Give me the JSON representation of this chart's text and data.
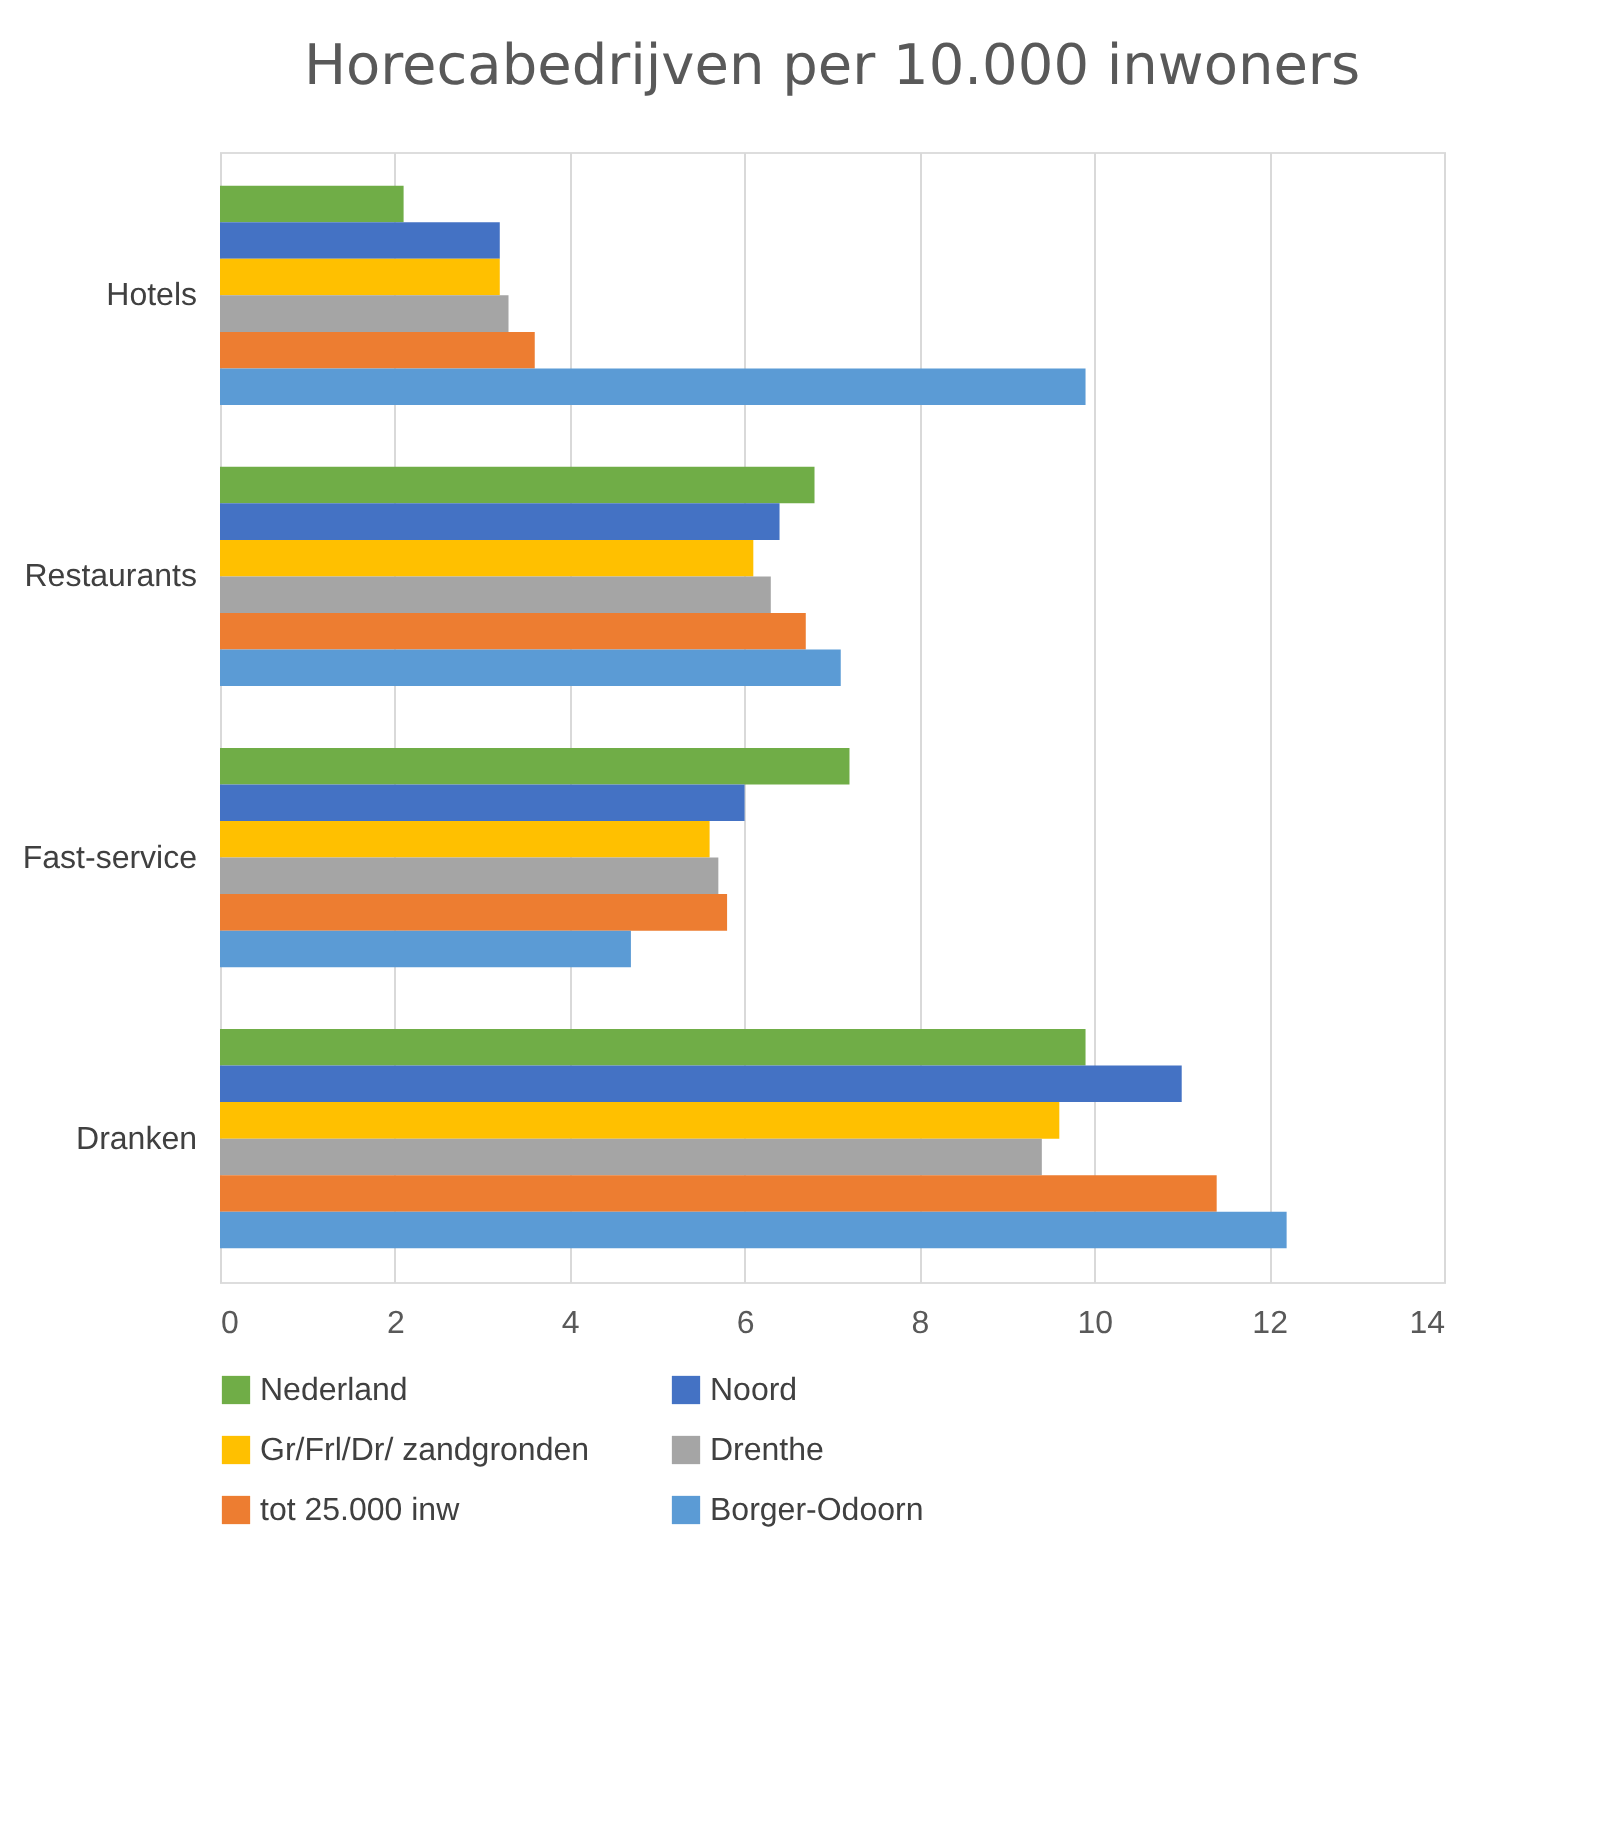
{
  "chart_data": {
    "type": "bar",
    "orientation": "horizontal",
    "title": "Horecabedrijven per 10.000 inwoners",
    "categories": [
      "Hotels",
      "Restaurants",
      "Fast-service",
      "Dranken"
    ],
    "series": [
      {
        "name": "Nederland",
        "color": "#70ad47",
        "values": [
          2.1,
          6.8,
          7.2,
          9.9
        ]
      },
      {
        "name": "Noord",
        "color": "#4472c4",
        "values": [
          3.2,
          6.4,
          6.0,
          11.0
        ]
      },
      {
        "name": "Gr/Frl/Dr/ zandgronden",
        "color": "#ffc000",
        "values": [
          3.2,
          6.1,
          5.6,
          9.6
        ]
      },
      {
        "name": "Drenthe",
        "color": "#a5a5a5",
        "values": [
          3.3,
          6.3,
          5.7,
          9.4
        ]
      },
      {
        "name": "tot 25.000 inw",
        "color": "#ed7d31",
        "values": [
          3.6,
          6.7,
          5.8,
          11.4
        ]
      },
      {
        "name": "Borger-Odoorn",
        "color": "#5b9bd5",
        "values": [
          9.9,
          7.1,
          4.7,
          12.2
        ]
      }
    ],
    "xlim": [
      0,
      14
    ],
    "xticks": [
      0,
      2,
      4,
      6,
      8,
      10,
      12,
      14
    ],
    "grid": "x",
    "legend": "bottom"
  }
}
